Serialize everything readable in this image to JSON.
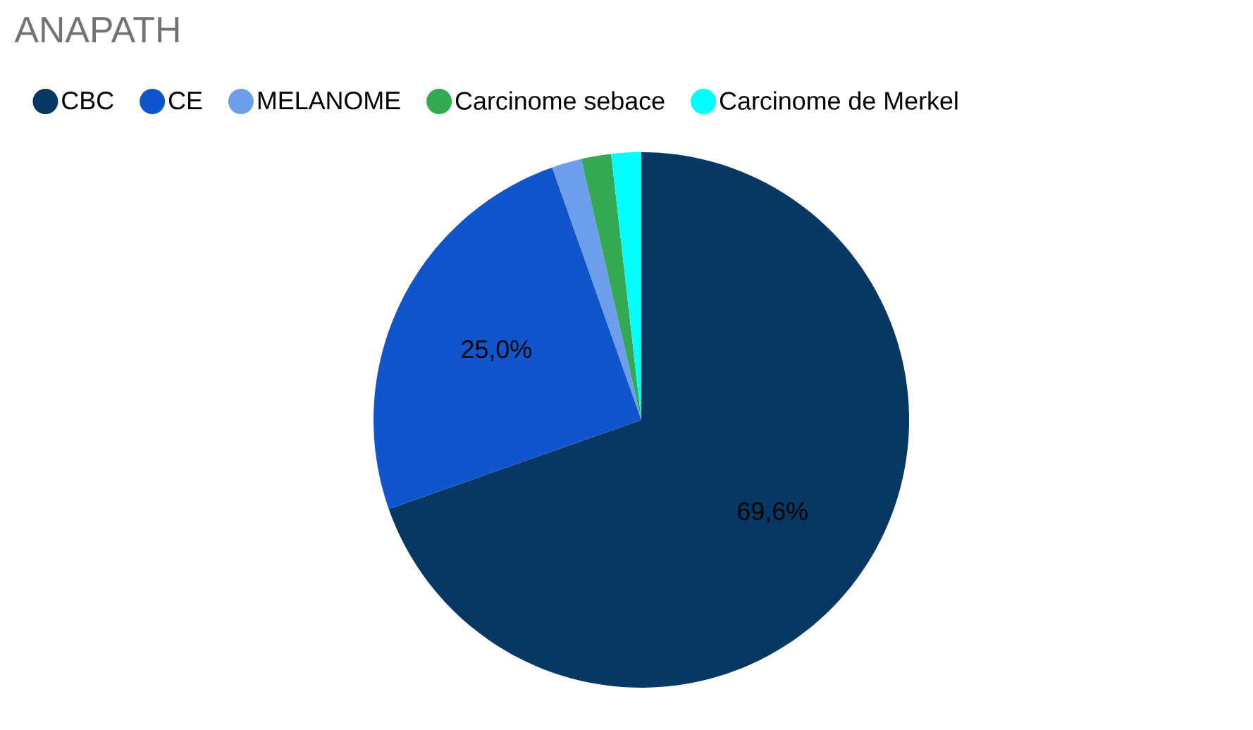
{
  "chart_data": {
    "type": "pie",
    "title": "ANAPATH",
    "categories": [
      "CBC",
      "CE",
      "MELANOME",
      "Carcinome sebace",
      "Carcinome de Merkel"
    ],
    "values": [
      69.6,
      25.0,
      1.8,
      1.8,
      1.8
    ],
    "value_labels": [
      "69,6%",
      "25,0%",
      null,
      null,
      null
    ],
    "colors": [
      "#073763",
      "#1155cc",
      "#6d9eeb",
      "#34a853",
      "#00ffff"
    ],
    "legend": "top"
  }
}
